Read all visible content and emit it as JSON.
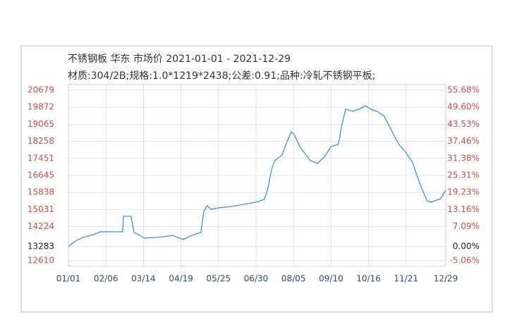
{
  "chart_data": {
    "type": "line",
    "title": "不锈钢板 华东 市场价 2021-01-01 - 2021-12-29",
    "subtitle": "材质:304/2B;规格:1.0*1219*2438;公差:0.91;品种:冷轧不锈钢平板;",
    "grid": true,
    "xlim": [
      "01/01",
      "12/29"
    ],
    "xticks": [
      "01/01",
      "02/06",
      "03/14",
      "04/19",
      "05/25",
      "06/30",
      "08/05",
      "09/10",
      "10/16",
      "11/21",
      "12/29"
    ],
    "ylim": [
      12610,
      20679
    ],
    "yticks": [
      12610,
      13283,
      14224,
      15031,
      15838,
      16645,
      17451,
      18258,
      19065,
      19872,
      20679
    ],
    "y2lim": [
      -5.06,
      55.68
    ],
    "y2ticks": [
      {
        "value": -5.06,
        "label": "-5.06%"
      },
      {
        "value": 0,
        "label": "0.00%"
      },
      {
        "value": 7.09,
        "label": "7.09%"
      },
      {
        "value": 13.16,
        "label": "13.16%"
      },
      {
        "value": 19.23,
        "label": "19.23%"
      },
      {
        "value": 25.31,
        "label": "25.31%"
      },
      {
        "value": 31.38,
        "label": "31.38%"
      },
      {
        "value": 37.46,
        "label": "37.46%"
      },
      {
        "value": 43.53,
        "label": "43.53%"
      },
      {
        "value": 49.6,
        "label": "49.60%"
      },
      {
        "value": 55.68,
        "label": "55.68%"
      }
    ],
    "x": [
      "01/01",
      "01/08",
      "01/15",
      "01/25",
      "02/01",
      "02/22",
      "02/23",
      "03/02",
      "03/05",
      "03/15",
      "04/01",
      "04/11",
      "04/21",
      "04/28",
      "05/08",
      "05/11",
      "05/14",
      "05/18",
      "05/25",
      "06/07",
      "06/18",
      "06/30",
      "07/08",
      "07/11",
      "07/15",
      "07/18",
      "07/25",
      "07/30",
      "08/03",
      "08/06",
      "08/11",
      "08/21",
      "08/28",
      "09/04",
      "09/10",
      "09/17",
      "09/20",
      "09/24",
      "10/01",
      "10/07",
      "10/13",
      "10/18",
      "10/24",
      "10/31",
      "11/07",
      "11/14",
      "11/20",
      "11/27",
      "12/04",
      "12/11",
      "12/15",
      "12/24",
      "12/29"
    ],
    "series": [
      {
        "color": "#4a8cc4",
        "values": [
          13283,
          13543,
          13710,
          13844,
          13977,
          13977,
          14710,
          14710,
          13944,
          13677,
          13730,
          13800,
          13610,
          13780,
          13944,
          14944,
          15210,
          15044,
          15110,
          15177,
          15277,
          15377,
          15510,
          15944,
          16944,
          17344,
          17610,
          18278,
          18711,
          18544,
          18011,
          17344,
          17210,
          17544,
          18011,
          18111,
          18944,
          19778,
          19678,
          19778,
          19945,
          19778,
          19678,
          19445,
          18778,
          18111,
          17777,
          17277,
          16277,
          15444,
          15377,
          15544,
          15944
        ]
      }
    ]
  }
}
